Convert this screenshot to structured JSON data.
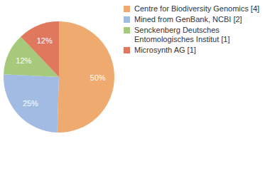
{
  "chart_data": {
    "type": "pie",
    "categories": [
      "Centre for Biodiversity Genomics [4]",
      "Mined from GenBank, NCBI [2]",
      "Senckenberg Deutsches Entomologisches Institut [1]",
      "Microsynth AG [1]"
    ],
    "values": [
      50,
      25,
      12,
      12
    ],
    "value_labels": [
      "50%",
      "25%",
      "12%",
      "12%"
    ],
    "colors": [
      "#efaa70",
      "#a1bbe3",
      "#a6c97b",
      "#e0785e"
    ],
    "data_labels": true,
    "legend": "top-right"
  }
}
